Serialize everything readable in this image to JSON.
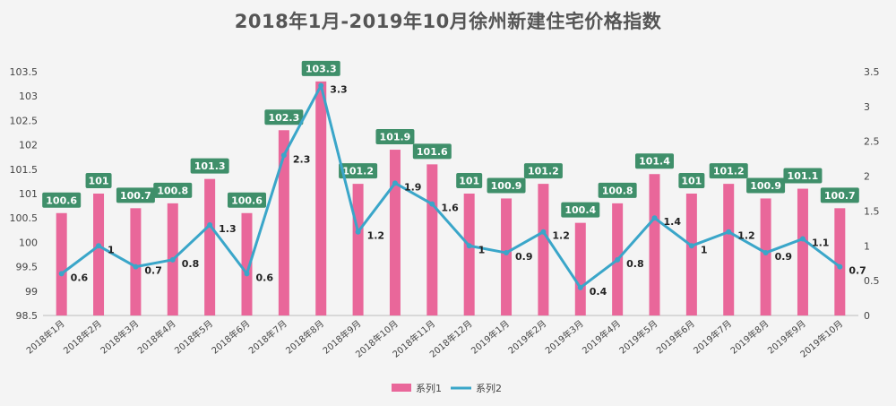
{
  "chart_data": {
    "type": "bar",
    "title": "2018年1月-2019年10月徐州新建住宅价格指数",
    "categories": [
      "2018年1月",
      "2018年2月",
      "2018年3月",
      "2018年4月",
      "2018年5月",
      "2018年6月",
      "2018年7月",
      "2018年8月",
      "2018年9月",
      "2018年10月",
      "2018年11月",
      "2018年12月",
      "2019年1月",
      "2019年2月",
      "2019年3月",
      "2019年4月",
      "2019年5月",
      "2019年6月",
      "2019年7月",
      "2019年8月",
      "2019年9月",
      "2019年10月"
    ],
    "series": [
      {
        "name": "系列1",
        "type": "bar",
        "axis": "left",
        "color": "#e9679a",
        "values": [
          100.6,
          101,
          100.7,
          100.8,
          101.3,
          100.6,
          102.3,
          103.3,
          101.2,
          101.9,
          101.6,
          101,
          100.9,
          101.2,
          100.4,
          100.8,
          101.4,
          101,
          101.2,
          100.9,
          101.1,
          100.7
        ]
      },
      {
        "name": "系列2",
        "type": "line",
        "axis": "right",
        "color": "#3aa6c9",
        "values": [
          0.6,
          1,
          0.7,
          0.8,
          1.3,
          0.6,
          2.3,
          3.3,
          1.2,
          1.9,
          1.6,
          1,
          0.9,
          1.2,
          0.4,
          0.8,
          1.4,
          1,
          1.2,
          0.9,
          1.1,
          0.7
        ]
      }
    ],
    "y_left": {
      "min": 98.5,
      "max": 103.5,
      "step": 0.5,
      "ticks": [
        "98.5",
        "99",
        "99.5",
        "100",
        "100.5",
        "101",
        "101.5",
        "102",
        "102.5",
        "103",
        "103.5"
      ]
    },
    "y_right": {
      "min": 0,
      "max": 3.5,
      "step": 0.5,
      "ticks": [
        "0",
        "0.5",
        "1",
        "1.5",
        "2",
        "2.5",
        "3",
        "3.5"
      ]
    },
    "grid": false,
    "legend_position": "bottom",
    "bar_label_color": "#3f8f6a"
  }
}
